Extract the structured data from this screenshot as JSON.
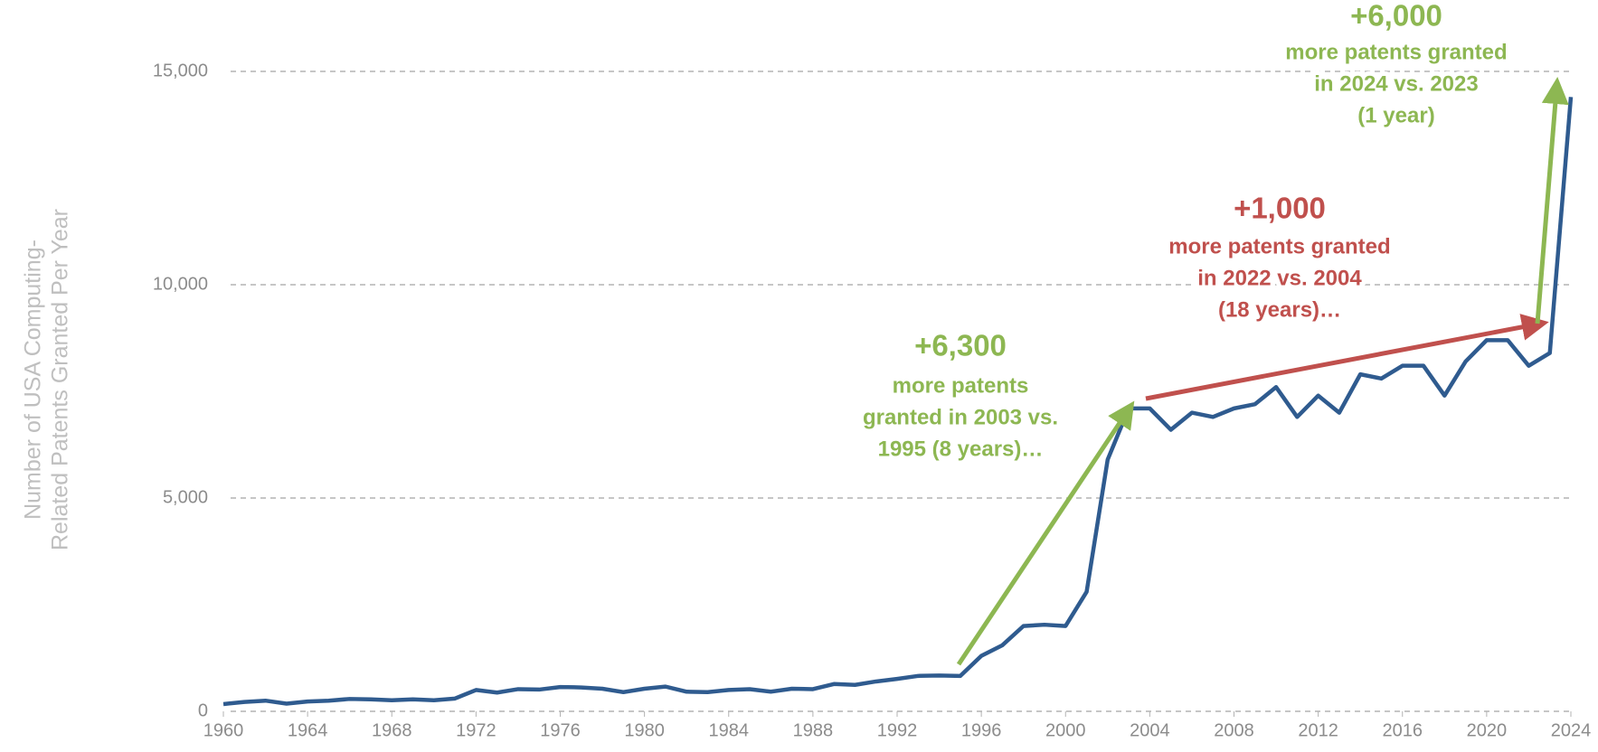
{
  "chart_data": {
    "type": "line",
    "y_axis_label": [
      "Number of USA Computing-",
      "Related Patents Granted Per Year"
    ],
    "x": [
      1960,
      1961,
      1962,
      1963,
      1964,
      1965,
      1966,
      1967,
      1968,
      1969,
      1970,
      1971,
      1972,
      1973,
      1974,
      1975,
      1976,
      1977,
      1978,
      1979,
      1980,
      1981,
      1982,
      1983,
      1984,
      1985,
      1986,
      1987,
      1988,
      1989,
      1990,
      1991,
      1992,
      1993,
      1994,
      1995,
      1996,
      1997,
      1998,
      1999,
      2000,
      2001,
      2002,
      2003,
      2004,
      2005,
      2006,
      2007,
      2008,
      2009,
      2010,
      2011,
      2012,
      2013,
      2014,
      2015,
      2016,
      2017,
      2018,
      2019,
      2020,
      2021,
      2022,
      2023,
      2024
    ],
    "series": [
      {
        "color": "#2f5b8f",
        "values": [
          170,
          220,
          250,
          180,
          230,
          250,
          290,
          280,
          260,
          280,
          260,
          300,
          500,
          440,
          520,
          510,
          570,
          560,
          530,
          450,
          530,
          580,
          460,
          450,
          500,
          520,
          460,
          530,
          520,
          640,
          620,
          700,
          760,
          830,
          840,
          830,
          1300,
          1550,
          2000,
          2030,
          2000,
          2800,
          5900,
          7100,
          7100,
          6600,
          7000,
          6900,
          7100,
          7200,
          7600,
          6900,
          7400,
          7000,
          7900,
          7800,
          8100,
          8100,
          7400,
          8200,
          8700,
          8700,
          8100,
          8400,
          14400
        ]
      }
    ],
    "xlim": [
      1960,
      2024
    ],
    "xticks": [
      1960,
      1964,
      1968,
      1972,
      1976,
      1980,
      1984,
      1988,
      1992,
      1996,
      2000,
      2004,
      2008,
      2012,
      2016,
      2020,
      2024
    ],
    "ylim": [
      0,
      15000
    ],
    "yticks": [
      0,
      {
        "value": 5000,
        "label": "5,000"
      },
      {
        "value": 10000,
        "label": "10,000"
      },
      {
        "value": 15000,
        "label": "15,000"
      }
    ],
    "grid": true,
    "annotations": [
      {
        "headline": "+6,300",
        "lines": [
          "more patents",
          "granted in 2003 vs.",
          "1995 (8 years)…"
        ],
        "color": "#8db752"
      },
      {
        "headline": "+1,000",
        "lines": [
          "more patents granted",
          "in 2022 vs. 2004",
          "(18 years)…"
        ],
        "color": "#c0504d"
      },
      {
        "headline": "+6,000",
        "lines": [
          "more patents granted",
          "in 2024 vs. 2023",
          "(1 year)"
        ],
        "color": "#8db752"
      }
    ]
  }
}
